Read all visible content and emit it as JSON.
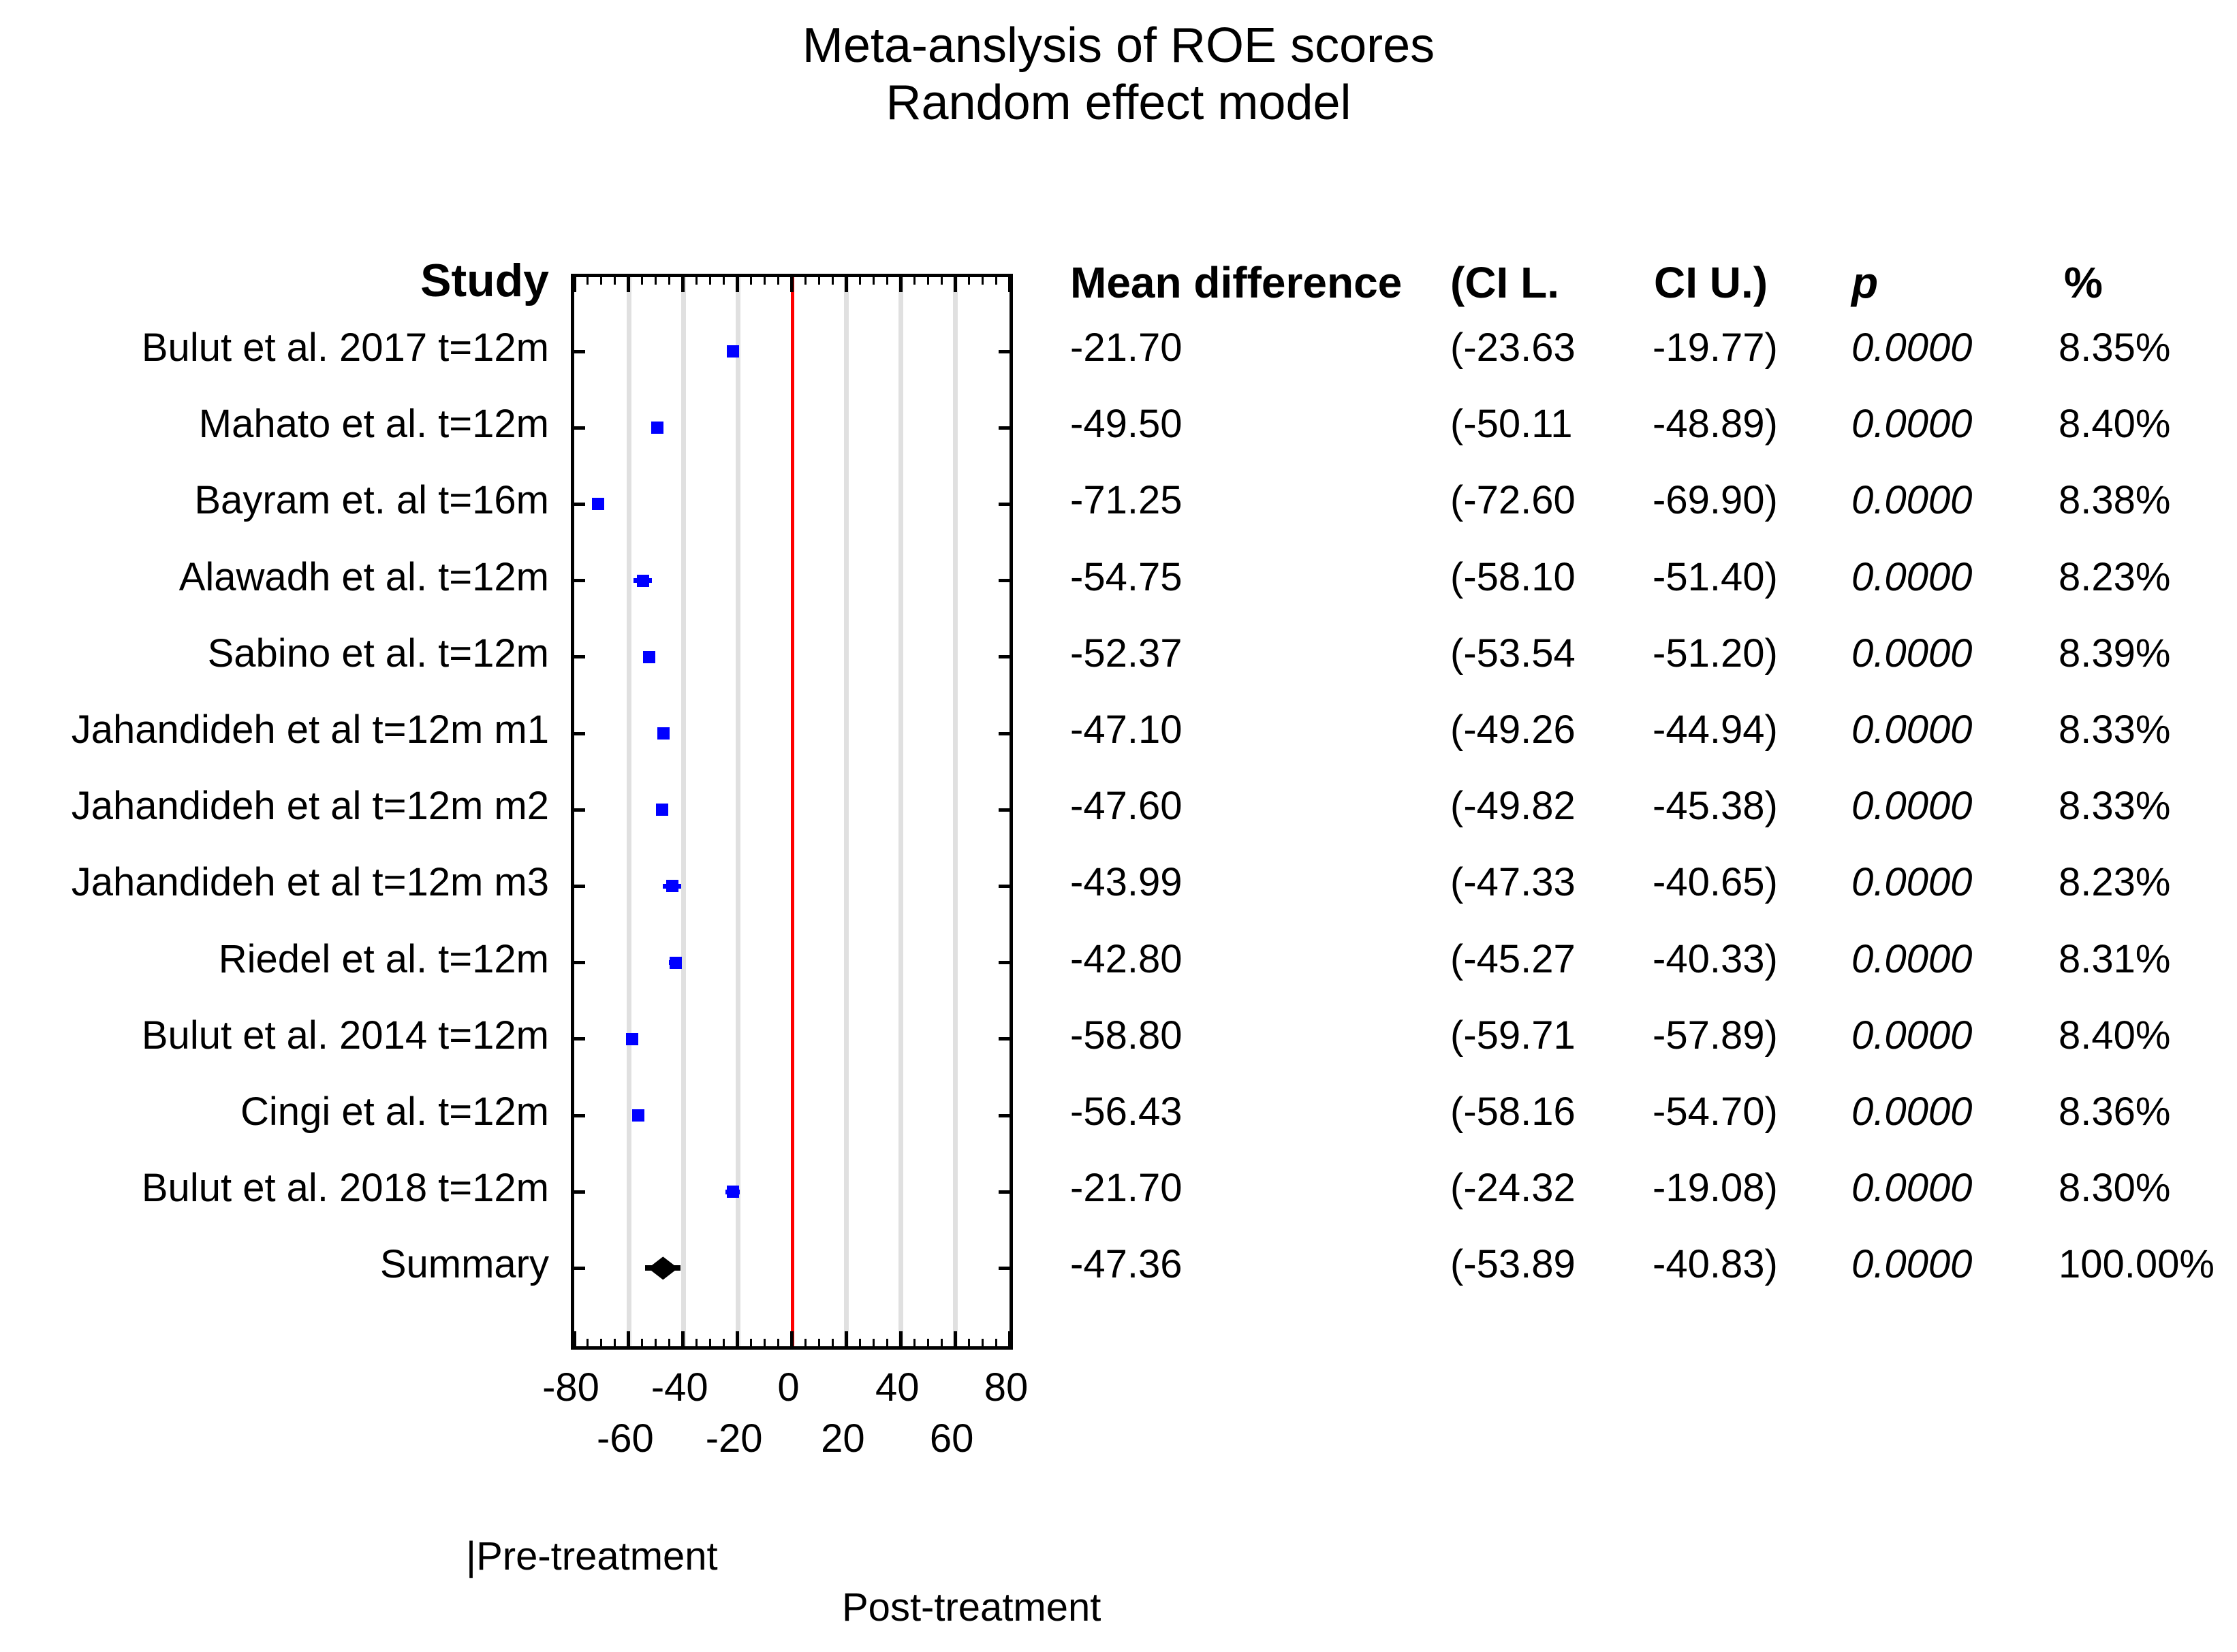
{
  "title": {
    "line1": "Meta-anslysis of ROE scores",
    "line2": "Random effect model"
  },
  "columns": {
    "study": "Study",
    "mean": "Mean difference",
    "ci_l": "(CI L.",
    "ci_u": "CI U.)",
    "p": "p",
    "weight": "%"
  },
  "footer": {
    "pre_treatment": "|Pre-treatment",
    "post_treatment": "Post-treatment"
  },
  "chart_data": {
    "type": "forest",
    "title": "Meta-anslysis of ROE scores",
    "subtitle": "Random effect model",
    "xlim": [
      -80,
      80
    ],
    "gridlines_x": [
      -60,
      -40,
      -20,
      20,
      40,
      60
    ],
    "zero_line_x": 0,
    "major_tick_step": 20,
    "minor_tick_step": 5,
    "grid": "on",
    "x_ticks_row1": {
      "values": [
        -80,
        -40,
        0,
        40,
        80
      ],
      "labels": [
        "-80",
        "-40",
        "0",
        "40",
        "80"
      ]
    },
    "x_ticks_row2": {
      "values": [
        -60,
        -20,
        20,
        60
      ],
      "labels": [
        "-60",
        "-20",
        "20",
        "60"
      ]
    },
    "colors": {
      "marker": "#0000ff",
      "summary": "#000000",
      "zero_line": "#ff0000",
      "gridline": "#e0e0e0",
      "axis": "#000000"
    },
    "studies": [
      {
        "label": "Bulut et al. 2017 t=12m",
        "mean": -21.7,
        "ci_l": -23.63,
        "ci_u": -19.77,
        "mean_text": "-21.70",
        "ci_l_text": "(-23.63",
        "ci_u_text": "-19.77)",
        "p_text": "0.0000",
        "weight_text": "8.35%"
      },
      {
        "label": "Mahato et al. t=12m",
        "mean": -49.5,
        "ci_l": -50.11,
        "ci_u": -48.89,
        "mean_text": "-49.50",
        "ci_l_text": "(-50.11",
        "ci_u_text": "-48.89)",
        "p_text": "0.0000",
        "weight_text": "8.40%"
      },
      {
        "label": "Bayram et. al t=16m",
        "mean": -71.25,
        "ci_l": -72.6,
        "ci_u": -69.9,
        "mean_text": "-71.25",
        "ci_l_text": "(-72.60",
        "ci_u_text": "-69.90)",
        "p_text": "0.0000",
        "weight_text": "8.38%"
      },
      {
        "label": "Alawadh et al. t=12m",
        "mean": -54.75,
        "ci_l": -58.1,
        "ci_u": -51.4,
        "mean_text": "-54.75",
        "ci_l_text": "(-58.10",
        "ci_u_text": "-51.40)",
        "p_text": "0.0000",
        "weight_text": "8.23%"
      },
      {
        "label": "Sabino et al. t=12m",
        "mean": -52.37,
        "ci_l": -53.54,
        "ci_u": -51.2,
        "mean_text": "-52.37",
        "ci_l_text": "(-53.54",
        "ci_u_text": "-51.20)",
        "p_text": "0.0000",
        "weight_text": "8.39%"
      },
      {
        "label": "Jahandideh et al t=12m m1",
        "mean": -47.1,
        "ci_l": -49.26,
        "ci_u": -44.94,
        "mean_text": "-47.10",
        "ci_l_text": "(-49.26",
        "ci_u_text": "-44.94)",
        "p_text": "0.0000",
        "weight_text": "8.33%"
      },
      {
        "label": "Jahandideh et al t=12m m2",
        "mean": -47.6,
        "ci_l": -49.82,
        "ci_u": -45.38,
        "mean_text": "-47.60",
        "ci_l_text": "(-49.82",
        "ci_u_text": "-45.38)",
        "p_text": "0.0000",
        "weight_text": "8.33%"
      },
      {
        "label": "Jahandideh et al t=12m m3",
        "mean": -43.99,
        "ci_l": -47.33,
        "ci_u": -40.65,
        "mean_text": "-43.99",
        "ci_l_text": "(-47.33",
        "ci_u_text": "-40.65)",
        "p_text": "0.0000",
        "weight_text": "8.23%"
      },
      {
        "label": "Riedel et al. t=12m",
        "mean": -42.8,
        "ci_l": -45.27,
        "ci_u": -40.33,
        "mean_text": "-42.80",
        "ci_l_text": "(-45.27",
        "ci_u_text": "-40.33)",
        "p_text": "0.0000",
        "weight_text": "8.31%"
      },
      {
        "label": "Bulut et al. 2014 t=12m",
        "mean": -58.8,
        "ci_l": -59.71,
        "ci_u": -57.89,
        "mean_text": "-58.80",
        "ci_l_text": "(-59.71",
        "ci_u_text": "-57.89)",
        "p_text": "0.0000",
        "weight_text": "8.40%"
      },
      {
        "label": "Cingi et al. t=12m",
        "mean": -56.43,
        "ci_l": -58.16,
        "ci_u": -54.7,
        "mean_text": "-56.43",
        "ci_l_text": "(-58.16",
        "ci_u_text": "-54.70)",
        "p_text": "0.0000",
        "weight_text": "8.36%"
      },
      {
        "label": "Bulut et al. 2018 t=12m",
        "mean": -21.7,
        "ci_l": -24.32,
        "ci_u": -19.08,
        "mean_text": "-21.70",
        "ci_l_text": "(-24.32",
        "ci_u_text": "-19.08)",
        "p_text": "0.0000",
        "weight_text": "8.30%"
      }
    ],
    "summary": {
      "label": "Summary",
      "mean": -47.36,
      "ci_l": -53.89,
      "ci_u": -40.83,
      "mean_text": "-47.36",
      "ci_l_text": "(-53.89",
      "ci_u_text": "-40.83)",
      "p_text": "0.0000",
      "weight_text": "100.00%"
    }
  }
}
